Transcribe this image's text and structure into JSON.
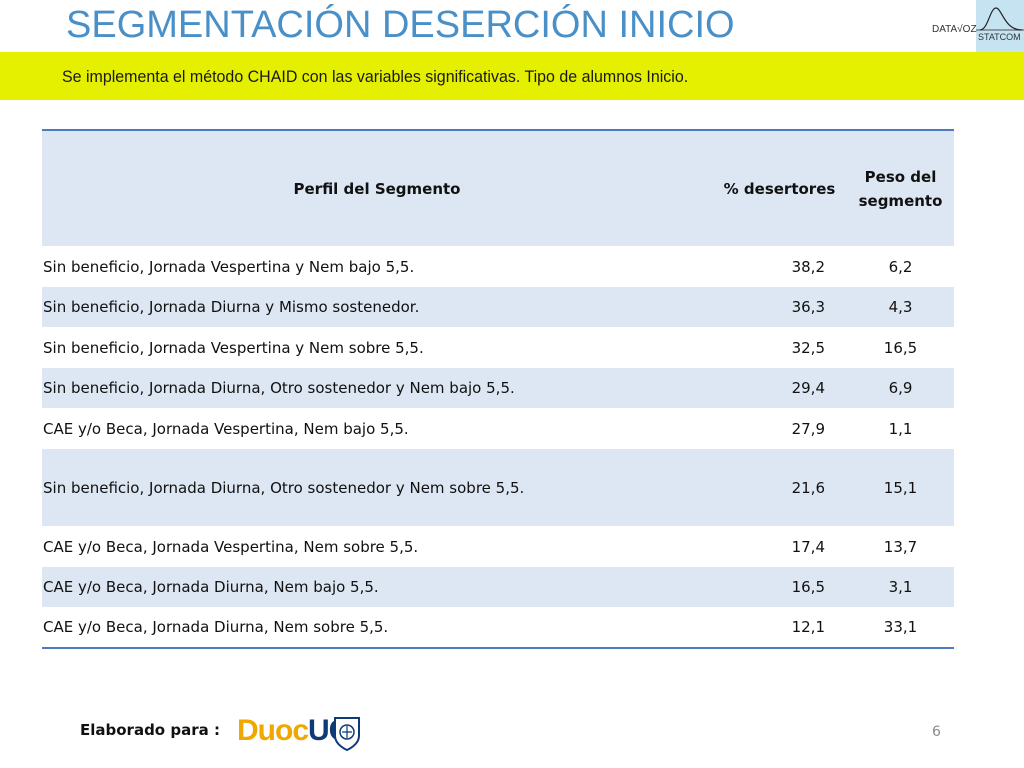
{
  "slide": {
    "title": "SEGMENTACIÓN DESERCIÓN INICIO",
    "subtitle": "Se implementa el método CHAID con las variables significativas. Tipo de alumnos Inicio."
  },
  "logo_top": {
    "left_text": "DATA√OZ",
    "right_text": "STATCOM"
  },
  "table": {
    "headers": {
      "perfil": "Perfil del Segmento",
      "pct": "% desertores",
      "peso_line1": "Peso del",
      "peso_line2": "segmento"
    },
    "rows": [
      {
        "perfil": "Sin beneficio, Jornada Vespertina y Nem bajo 5,5.",
        "pct": "38,2",
        "peso": "6,2"
      },
      {
        "perfil": "Sin beneficio, Jornada Diurna y Mismo sostenedor.",
        "pct": "36,3",
        "peso": "4,3"
      },
      {
        "perfil": "Sin beneficio, Jornada Vespertina y Nem sobre 5,5.",
        "pct": "32,5",
        "peso": "16,5"
      },
      {
        "perfil": "Sin beneficio, Jornada Diurna, Otro sostenedor y Nem bajo 5,5.",
        "pct": "29,4",
        "peso": "6,9"
      },
      {
        "perfil": "CAE y/o Beca, Jornada Vespertina, Nem bajo 5,5.",
        "pct": "27,9",
        "peso": "1,1"
      },
      {
        "perfil": "Sin beneficio, Jornada Diurna, Otro sostenedor y Nem sobre 5,5.",
        "pct": "21,6",
        "peso": "15,1"
      },
      {
        "perfil": "CAE y/o Beca, Jornada Vespertina, Nem sobre 5,5.",
        "pct": "17,4",
        "peso": "13,7"
      },
      {
        "perfil": "CAE y/o Beca, Jornada Diurna, Nem bajo 5,5.",
        "pct": "16,5",
        "peso": "3,1"
      },
      {
        "perfil": "CAE y/o Beca, Jornada Diurna, Nem sobre 5,5.",
        "pct": "12,1",
        "peso": "33,1"
      }
    ]
  },
  "footer": {
    "label": "Elaborado para :",
    "logo_duoc": "Duoc",
    "logo_uc": "UC",
    "page_number": "6"
  },
  "colors": {
    "title": "#4a90c8",
    "banner": "#e4f000",
    "table_header": "#dce7f3",
    "table_rule": "#4a7ac0"
  }
}
